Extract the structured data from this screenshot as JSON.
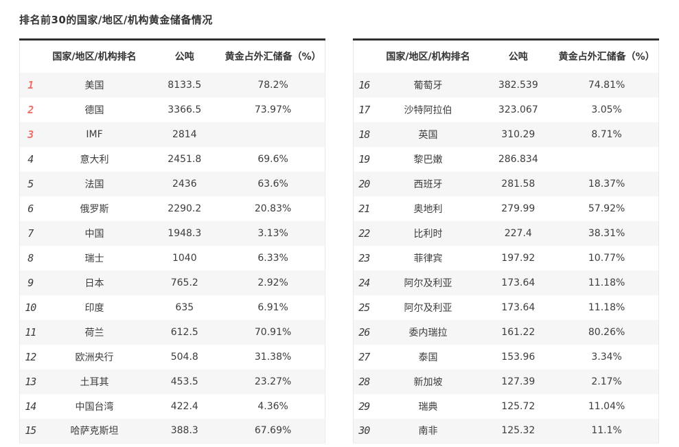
{
  "title": "排名前30的国家/地区/机构黄金储备情况",
  "colors": {
    "accent_rank_red": "#ee6e68",
    "rank_gray": "#666666",
    "header_text": "#333333",
    "body_text": "#3c3c3c",
    "stripe_row": "#f6f6f6",
    "table_top_border": "#2f2f2f",
    "table_side_border": "#e9e9e9"
  },
  "chart_data": {
    "type": "table",
    "title": "排名前30的国家/地区/机构黄金储备情况",
    "columns": [
      "国家/地区/机构排名",
      "公吨",
      "黄金占外汇储备（%）"
    ],
    "highlight_top_ranks": 3,
    "tables": [
      {
        "rows": [
          [
            "1",
            "美国",
            "8133.5",
            "78.2%"
          ],
          [
            "2",
            "德国",
            "3366.5",
            "73.97%"
          ],
          [
            "3",
            "IMF",
            "2814",
            ""
          ],
          [
            "4",
            "意大利",
            "2451.8",
            "69.6%"
          ],
          [
            "5",
            "法国",
            "2436",
            "63.6%"
          ],
          [
            "6",
            "俄罗斯",
            "2290.2",
            "20.83%"
          ],
          [
            "7",
            "中国",
            "1948.3",
            "3.13%"
          ],
          [
            "8",
            "瑞士",
            "1040",
            "6.33%"
          ],
          [
            "9",
            "日本",
            "765.2",
            "2.92%"
          ],
          [
            "10",
            "印度",
            "635",
            "6.91%"
          ],
          [
            "11",
            "荷兰",
            "612.5",
            "70.91%"
          ],
          [
            "12",
            "欧洲央行",
            "504.8",
            "31.38%"
          ],
          [
            "13",
            "土耳其",
            "453.5",
            "23.27%"
          ],
          [
            "14",
            "中国台湾",
            "422.4",
            "4.36%"
          ],
          [
            "15",
            "哈萨克斯坦",
            "388.3",
            "67.69%"
          ]
        ]
      },
      {
        "rows": [
          [
            "16",
            "葡萄牙",
            "382.539",
            "74.81%"
          ],
          [
            "17",
            "沙特阿拉伯",
            "323.067",
            "3.05%"
          ],
          [
            "18",
            "英国",
            "310.29",
            "8.71%"
          ],
          [
            "19",
            "黎巴嫩",
            "286.834",
            ""
          ],
          [
            "20",
            "西班牙",
            "281.58",
            "18.37%"
          ],
          [
            "21",
            "奥地利",
            "279.99",
            "57.92%"
          ],
          [
            "22",
            "比利时",
            "227.4",
            "38.31%"
          ],
          [
            "23",
            "菲律宾",
            "197.92",
            "10.77%"
          ],
          [
            "24",
            "阿尔及利亚",
            "173.64",
            "11.18%"
          ],
          [
            "25",
            "阿尔及利亚",
            "173.64",
            "11.18%"
          ],
          [
            "26",
            "委内瑞拉",
            "161.22",
            "80.26%"
          ],
          [
            "27",
            "泰国",
            "153.96",
            "3.34%"
          ],
          [
            "28",
            "新加坡",
            "127.39",
            "2.17%"
          ],
          [
            "29",
            "瑞典",
            "125.72",
            "11.04%"
          ],
          [
            "30",
            "南非",
            "125.32",
            "11.1%"
          ]
        ]
      }
    ]
  }
}
